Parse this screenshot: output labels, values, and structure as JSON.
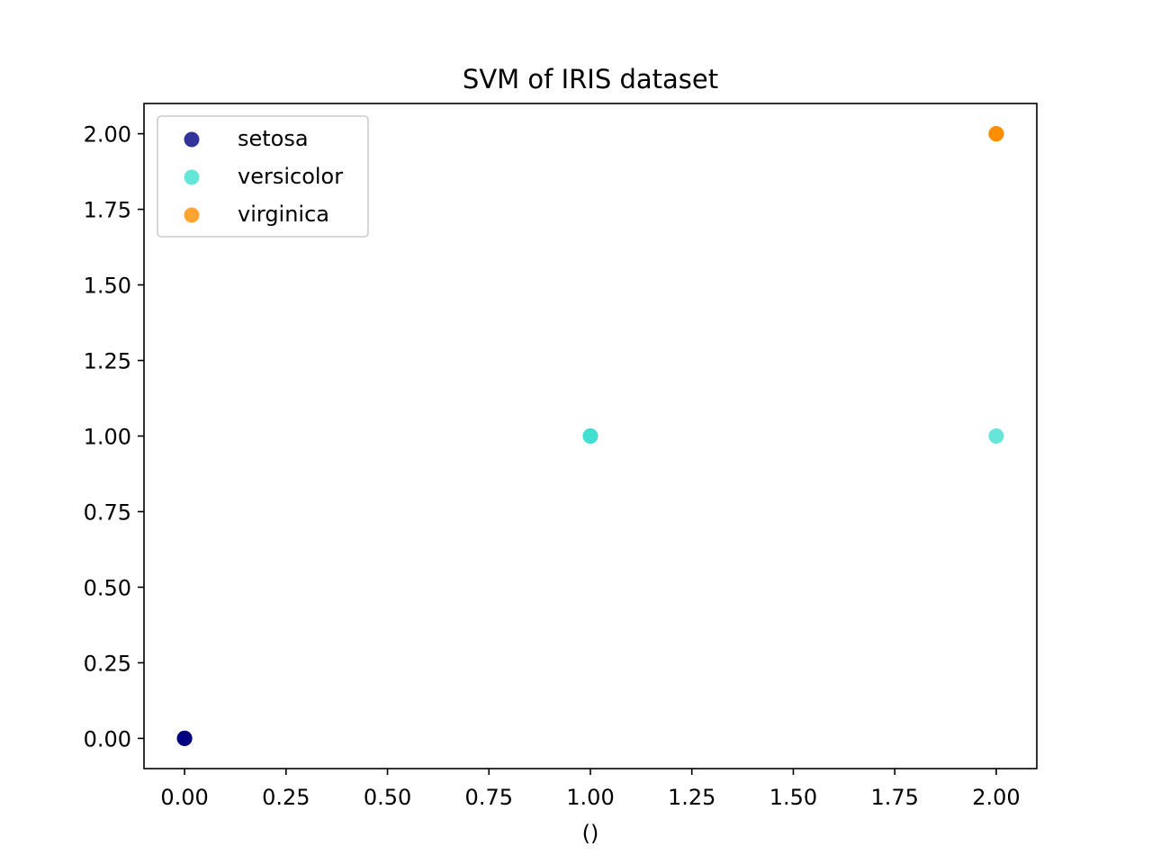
{
  "chart_data": {
    "type": "scatter",
    "title": "SVM of IRIS dataset",
    "xlabel": "()",
    "ylabel": "",
    "xlim": [
      -0.1,
      2.1
    ],
    "ylim": [
      -0.1,
      2.1
    ],
    "xticks": [
      "0.00",
      "0.25",
      "0.50",
      "0.75",
      "1.00",
      "1.25",
      "1.50",
      "1.75",
      "2.00"
    ],
    "yticks": [
      "0.00",
      "0.25",
      "0.50",
      "0.75",
      "1.00",
      "1.25",
      "1.50",
      "1.75",
      "2.00"
    ],
    "xtick_values": [
      0,
      0.25,
      0.5,
      0.75,
      1.0,
      1.25,
      1.5,
      1.75,
      2.0
    ],
    "ytick_values": [
      0,
      0.25,
      0.5,
      0.75,
      1.0,
      1.25,
      1.5,
      1.75,
      2.0
    ],
    "grid": false,
    "legend_position": "top-left",
    "series": [
      {
        "name": "setosa",
        "color": "#000080",
        "points": [
          [
            0,
            0
          ],
          [
            0,
            0
          ],
          [
            0,
            0
          ]
        ]
      },
      {
        "name": "versicolor",
        "color": "#40E0D0",
        "points": [
          [
            1,
            1
          ],
          [
            1,
            1
          ],
          [
            1,
            1
          ],
          [
            2,
            1
          ]
        ]
      },
      {
        "name": "virginica",
        "color": "#FF8C00",
        "points": [
          [
            2,
            2
          ],
          [
            2,
            2
          ],
          [
            2,
            2
          ]
        ]
      }
    ]
  }
}
